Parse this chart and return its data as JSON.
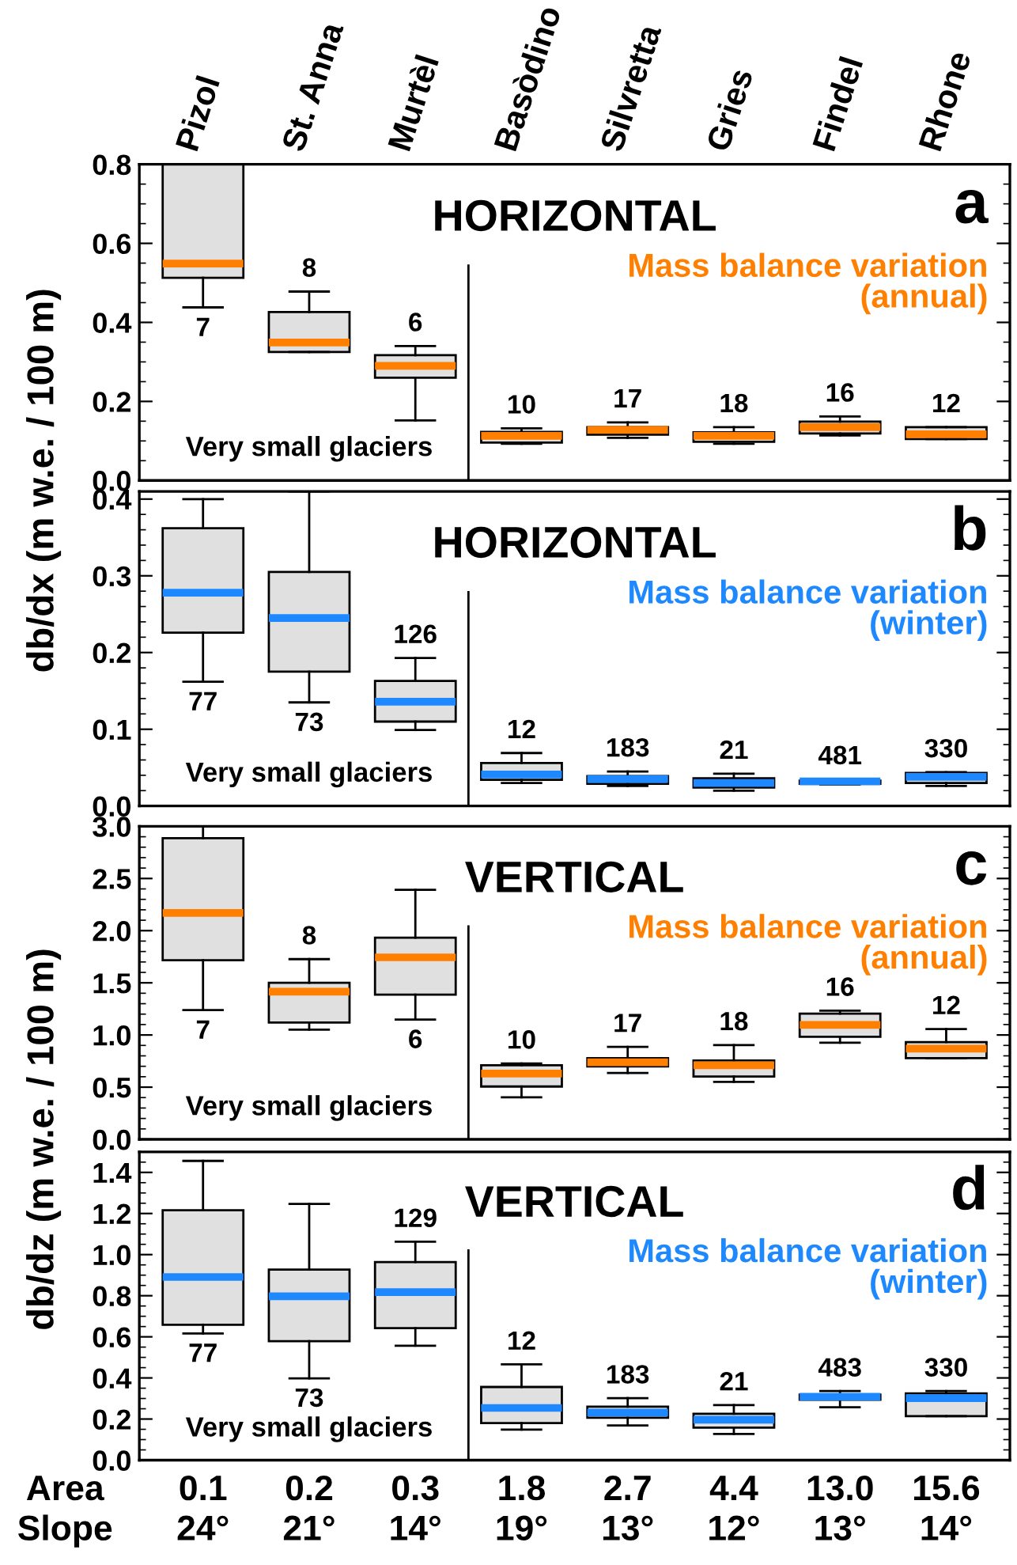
{
  "chart_data": [
    {
      "type": "box",
      "title": "HORIZONTAL",
      "ylabel": "db/dx (m w.e. / 100 m)",
      "categories": [
        "Pizol",
        "St. Anna",
        "Murtèl",
        "Basòdino",
        "Silvretta",
        "Gries",
        "Findel",
        "Rhone"
      ],
      "series": [
        {
          "color": "#e0e0e0",
          "boxes": [
            {
              "low": 0.438,
              "q1": 0.513,
              "median": 0.549,
              "q3": 0.8,
              "high": 0.8
            },
            {
              "low": 0.325,
              "q1": 0.325,
              "median": 0.349,
              "q3": 0.426,
              "high": 0.478
            },
            {
              "low": 0.152,
              "q1": 0.26,
              "median": 0.29,
              "q3": 0.317,
              "high": 0.34
            },
            {
              "low": 0.093,
              "q1": 0.096,
              "median": 0.113,
              "q3": 0.123,
              "high": 0.132
            },
            {
              "low": 0.108,
              "q1": 0.116,
              "median": 0.128,
              "q3": 0.135,
              "high": 0.147
            },
            {
              "low": 0.093,
              "q1": 0.098,
              "median": 0.113,
              "q3": 0.122,
              "high": 0.135
            },
            {
              "low": 0.114,
              "q1": 0.119,
              "median": 0.135,
              "q3": 0.149,
              "high": 0.162
            },
            {
              "low": 0.105,
              "q1": 0.105,
              "median": 0.117,
              "q3": 0.135,
              "high": 0.135
            }
          ]
        }
      ],
      "ylim": [
        0,
        0.8
      ],
      "yticks": [
        {
          "value": 0,
          "label": "0.0"
        },
        {
          "value": 0.2,
          "label": "0.2"
        },
        {
          "value": 0.4,
          "label": "0.4"
        },
        {
          "value": 0.6,
          "label": "0.6"
        },
        {
          "value": 0.8,
          "label": "0.8"
        }
      ],
      "annotations": [
        "a",
        "Mass balance variation\n(annual)",
        "Very small glaciers",
        "7",
        "8",
        "6",
        "10",
        "17",
        "18",
        "16",
        "12"
      ]
    },
    {
      "type": "box",
      "title": "HORIZONTAL",
      "categories": [
        null,
        null,
        null,
        null,
        null,
        null,
        null,
        null
      ],
      "series": [
        {
          "color": "#e0e0e0",
          "boxes": [
            {
              "low": 0.162,
              "q1": 0.226,
              "median": 0.278,
              "q3": 0.362,
              "high": 0.4
            },
            {
              "low": 0.135,
              "q1": 0.175,
              "median": 0.245,
              "q3": 0.305,
              "high": 0.41
            },
            {
              "low": 0.099,
              "q1": 0.11,
              "median": 0.136,
              "q3": 0.163,
              "high": 0.193
            },
            {
              "low": 0.03,
              "q1": 0.034,
              "median": 0.041,
              "q3": 0.056,
              "high": 0.069
            },
            {
              "low": 0.026,
              "q1": 0.029,
              "median": 0.035,
              "q3": 0.039,
              "high": 0.045
            },
            {
              "low": 0.02,
              "q1": 0.024,
              "median": 0.03,
              "q3": 0.036,
              "high": 0.042
            },
            {
              "low": 0.028,
              "q1": 0.029,
              "median": 0.032,
              "q3": 0.033,
              "high": 0.035
            },
            {
              "low": 0.026,
              "q1": 0.03,
              "median": 0.038,
              "q3": 0.043,
              "high": 0.044
            }
          ]
        }
      ],
      "ylim": [
        0,
        0.41
      ],
      "yticks": [
        {
          "value": 0,
          "label": "0.0"
        },
        {
          "value": 0.1,
          "label": "0.1"
        },
        {
          "value": 0.2,
          "label": "0.2"
        },
        {
          "value": 0.3,
          "label": "0.3"
        },
        {
          "value": 0.4,
          "label": "0.4"
        }
      ],
      "tick_labels": "y",
      "annotations": [
        "b",
        "Mass balance variation\n(winter)",
        "Very small glaciers",
        "77",
        "73",
        "126",
        "12",
        "183",
        "21",
        "481",
        "330"
      ]
    },
    {
      "type": "box",
      "title": "VERTICAL",
      "ylabel": "db/dz (m w.e. / 100 m)",
      "categories": [
        null,
        null,
        null,
        null,
        null,
        null,
        null,
        null
      ],
      "series": [
        {
          "color": "#e0e0e0",
          "boxes": [
            {
              "low": 1.239,
              "q1": 1.716,
              "median": 2.17,
              "q3": 2.886,
              "high": 3.0
            },
            {
              "low": 1.051,
              "q1": 1.119,
              "median": 1.415,
              "q3": 1.5,
              "high": 1.727
            },
            {
              "low": 1.148,
              "q1": 1.386,
              "median": 1.744,
              "q3": 1.932,
              "high": 2.392
            },
            {
              "low": 0.403,
              "q1": 0.506,
              "median": 0.631,
              "q3": 0.71,
              "high": 0.727
            },
            {
              "low": 0.636,
              "q1": 0.699,
              "median": 0.739,
              "q3": 0.778,
              "high": 0.886
            },
            {
              "low": 0.551,
              "q1": 0.602,
              "median": 0.71,
              "q3": 0.756,
              "high": 0.903
            },
            {
              "low": 0.926,
              "q1": 0.983,
              "median": 1.097,
              "q3": 1.205,
              "high": 1.233
            },
            {
              "low": 0.778,
              "q1": 0.778,
              "median": 0.869,
              "q3": 0.932,
              "high": 1.057
            }
          ]
        }
      ],
      "ylim": [
        0,
        3.0
      ],
      "yticks": [
        {
          "value": 0,
          "label": "0.0"
        },
        {
          "value": 0.5,
          "label": "0.5"
        },
        {
          "value": 1,
          "label": "1.0"
        },
        {
          "value": 1.5,
          "label": "1.5"
        },
        {
          "value": 2,
          "label": "2.0"
        },
        {
          "value": 2.5,
          "label": "2.5"
        },
        {
          "value": 3,
          "label": "3.0"
        }
      ],
      "tick_labels": "y",
      "annotations": [
        "c",
        "Mass balance variation\n(annual)",
        "Very small glaciers",
        "7",
        "8",
        "6",
        "10",
        "17",
        "18",
        "16",
        "12"
      ]
    },
    {
      "type": "box",
      "title": "VERTICAL",
      "categories": [
        null,
        null,
        null,
        null,
        null,
        null,
        null,
        null
      ],
      "series": [
        {
          "color": "#e0e0e0",
          "boxes": [
            {
              "low": 0.616,
              "q1": 0.659,
              "median": 0.891,
              "q3": 1.216,
              "high": 1.456
            },
            {
              "low": 0.398,
              "q1": 0.579,
              "median": 0.797,
              "q3": 0.927,
              "high": 1.247
            },
            {
              "low": 0.557,
              "q1": 0.642,
              "median": 0.817,
              "q3": 0.964,
              "high": 1.063
            },
            {
              "low": 0.149,
              "q1": 0.18,
              "median": 0.254,
              "q3": 0.356,
              "high": 0.466
            },
            {
              "low": 0.169,
              "q1": 0.206,
              "median": 0.231,
              "q3": 0.26,
              "high": 0.302
            },
            {
              "low": 0.127,
              "q1": 0.158,
              "median": 0.197,
              "q3": 0.226,
              "high": 0.268
            },
            {
              "low": 0.257,
              "q1": 0.294,
              "median": 0.308,
              "q3": 0.319,
              "high": 0.336
            },
            {
              "low": 0.214,
              "q1": 0.214,
              "median": 0.302,
              "q3": 0.325,
              "high": 0.336
            }
          ]
        }
      ],
      "ylim": [
        0,
        1.5
      ],
      "yticks": [
        {
          "value": 0,
          "label": "0.0"
        },
        {
          "value": 0.2,
          "label": "0.2"
        },
        {
          "value": 0.4,
          "label": "0.4"
        },
        {
          "value": 0.6,
          "label": "0.6"
        },
        {
          "value": 0.8,
          "label": "0.8"
        },
        {
          "value": 1.0,
          "label": "1.0"
        },
        {
          "value": 1.2,
          "label": "1.2"
        },
        {
          "value": 1.4,
          "label": "1.4"
        }
      ],
      "tick_labels": "y",
      "annotations": [
        "d",
        "Mass balance variation\n(winter)",
        "Very small glaciers",
        "77",
        "73",
        "129",
        "12",
        "183",
        "21",
        "483",
        "330",
        "Area",
        "0.1",
        "0.2",
        "0.3",
        "1.8",
        "2.7",
        "4.4",
        "13.0",
        "15.6",
        "Slope",
        "24°",
        "21°",
        "14°",
        "19°",
        "13°",
        "12°",
        "13°",
        "14°"
      ]
    }
  ]
}
